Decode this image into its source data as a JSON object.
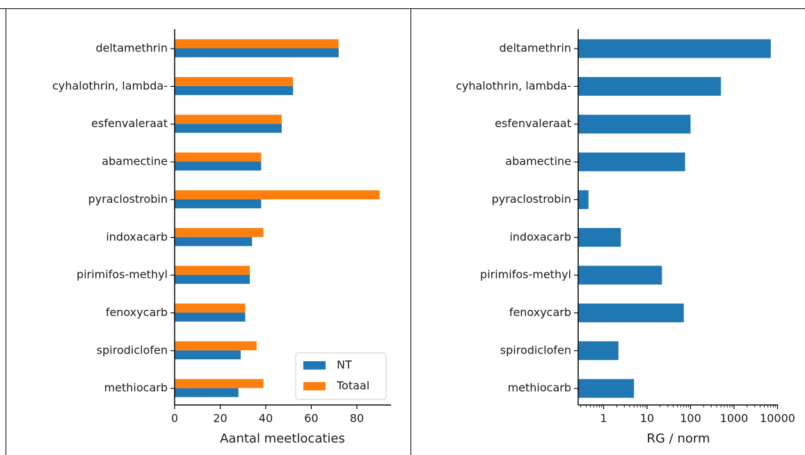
{
  "colors": {
    "nt": "#1f77b4",
    "totaal": "#ff7f0e",
    "axis": "#000000",
    "frame": "#000000"
  },
  "chart_data": [
    {
      "type": "bar",
      "orientation": "horizontal",
      "categories": [
        "deltamethrin",
        "cyhalothrin, lambda-",
        "esfenvaleraat",
        "abamectine",
        "pyraclostrobin",
        "indoxacarb",
        "pirimifos-methyl",
        "fenoxycarb",
        "spirodiclofen",
        "methiocarb"
      ],
      "series": [
        {
          "name": "NT",
          "values": [
            72,
            52,
            47,
            38,
            38,
            34,
            33,
            31,
            29,
            28
          ]
        },
        {
          "name": "Totaal",
          "values": [
            72,
            52,
            47,
            38,
            90,
            39,
            33,
            31,
            36,
            39
          ]
        }
      ],
      "xlabel": "Aantal meetlocaties",
      "ylabel": "",
      "xlim": [
        0,
        95
      ],
      "xticks": [
        0,
        20,
        40,
        60,
        80
      ],
      "legend": "bottom-right",
      "grid": false
    },
    {
      "type": "bar",
      "orientation": "horizontal",
      "scale": "log",
      "categories": [
        "deltamethrin",
        "cyhalothrin, lambda-",
        "esfenvaleraat",
        "abamectine",
        "pyraclostrobin",
        "indoxacarb",
        "pirimifos-methyl",
        "fenoxycarb",
        "spirodiclofen",
        "methiocarb"
      ],
      "values": [
        7000,
        500,
        100,
        75,
        0.45,
        2.5,
        22,
        70,
        2.2,
        5
      ],
      "xlabel": "RG / norm",
      "ylabel": "",
      "xlim": [
        0.25,
        10000
      ],
      "xticks": [
        1,
        10,
        100,
        1000,
        10000
      ],
      "xtick_labels": [
        "1",
        "10",
        "100",
        "1000",
        "10000"
      ],
      "grid": false
    }
  ]
}
